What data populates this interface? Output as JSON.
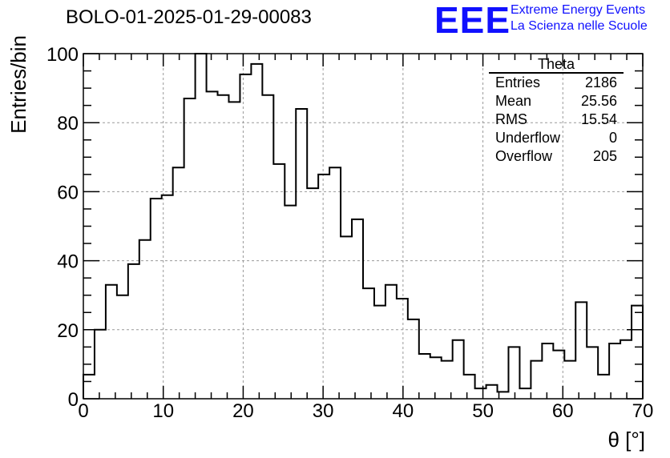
{
  "header": {
    "title": "BOLO-01-2025-01-29-00083",
    "logo_mark": "EEE",
    "logo_line1": "Extreme Energy Events",
    "logo_line2": "La Scienza nelle Scuole",
    "logo_color": "#1010ff"
  },
  "stats_box": {
    "name": "Theta",
    "rows": [
      {
        "label": "Entries",
        "value": "2186"
      },
      {
        "label": "Mean",
        "value": "25.56"
      },
      {
        "label": "RMS",
        "value": "15.54"
      },
      {
        "label": "Underflow",
        "value": "0"
      },
      {
        "label": "Overflow",
        "value": "205"
      }
    ]
  },
  "chart_data": {
    "type": "bar",
    "style": "step-histogram",
    "title": "BOLO-01-2025-01-29-00083",
    "xlabel": "θ [°]",
    "ylabel": "Entries/bin",
    "xlim": [
      0,
      70
    ],
    "ylim": [
      0,
      100
    ],
    "bin_width": 1.4,
    "x_ticks": [
      0,
      10,
      20,
      30,
      40,
      50,
      60,
      70
    ],
    "y_ticks": [
      0,
      20,
      40,
      60,
      80,
      100
    ],
    "grid": true,
    "values": [
      7,
      20,
      33,
      30,
      39,
      46,
      58,
      59,
      67,
      87,
      100,
      89,
      88,
      86,
      94,
      97,
      88,
      68,
      56,
      84,
      61,
      65,
      67,
      47,
      52,
      32,
      27,
      33,
      29,
      23,
      13,
      12,
      11,
      17,
      7,
      3,
      4,
      2,
      15,
      3,
      11,
      16,
      14,
      11,
      28,
      15,
      7,
      16,
      17,
      27
    ],
    "line_color": "#000000",
    "grid_color": "#999999"
  }
}
